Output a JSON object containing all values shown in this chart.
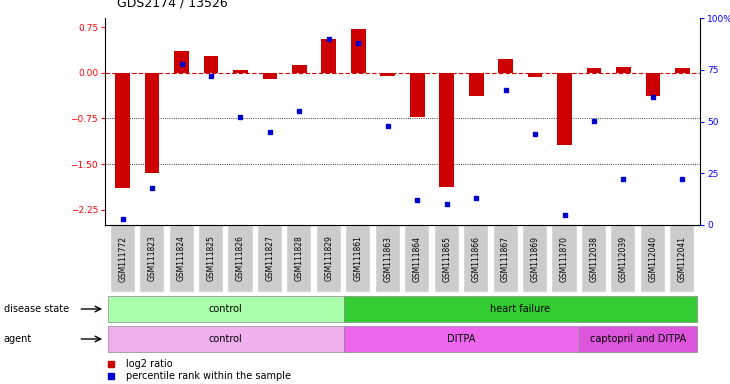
{
  "title": "GDS2174 / 13526",
  "samples": [
    "GSM111772",
    "GSM111823",
    "GSM111824",
    "GSM111825",
    "GSM111826",
    "GSM111827",
    "GSM111828",
    "GSM111829",
    "GSM111861",
    "GSM111863",
    "GSM111864",
    "GSM111865",
    "GSM111866",
    "GSM111867",
    "GSM111869",
    "GSM111870",
    "GSM112038",
    "GSM112039",
    "GSM112040",
    "GSM112041"
  ],
  "log2_ratio": [
    -1.9,
    -1.65,
    0.35,
    0.28,
    0.05,
    -0.1,
    0.12,
    0.55,
    0.72,
    -0.05,
    -0.72,
    -1.88,
    -0.38,
    0.22,
    -0.07,
    -1.18,
    0.08,
    0.1,
    -0.38,
    0.08
  ],
  "percentile_rank": [
    3,
    18,
    78,
    72,
    52,
    45,
    55,
    90,
    88,
    48,
    12,
    10,
    13,
    65,
    44,
    5,
    50,
    22,
    62,
    22
  ],
  "ylim_left": [
    -2.5,
    0.9
  ],
  "ylim_right": [
    0,
    100
  ],
  "left_yticks": [
    0.75,
    0.0,
    -0.75,
    -1.5,
    -2.25
  ],
  "right_yticks": [
    100,
    75,
    50,
    25,
    0
  ],
  "disease_state_groups": [
    {
      "label": "control",
      "start": 0,
      "end": 8,
      "color": "#aaffaa"
    },
    {
      "label": "heart failure",
      "start": 8,
      "end": 20,
      "color": "#33cc33"
    }
  ],
  "agent_groups": [
    {
      "label": "control",
      "start": 0,
      "end": 8,
      "color": "#f0b0f0"
    },
    {
      "label": "DITPA",
      "start": 8,
      "end": 16,
      "color": "#ee66ee"
    },
    {
      "label": "captopril and DITPA",
      "start": 16,
      "end": 20,
      "color": "#dd55dd"
    }
  ],
  "bar_color": "#cc0000",
  "dot_color": "#0000cc",
  "zero_line_color": "#cc0000",
  "bg_color": "#ffffff",
  "tick_bg": "#cccccc",
  "label_fontsize": 7,
  "tick_fontsize": 6.5
}
